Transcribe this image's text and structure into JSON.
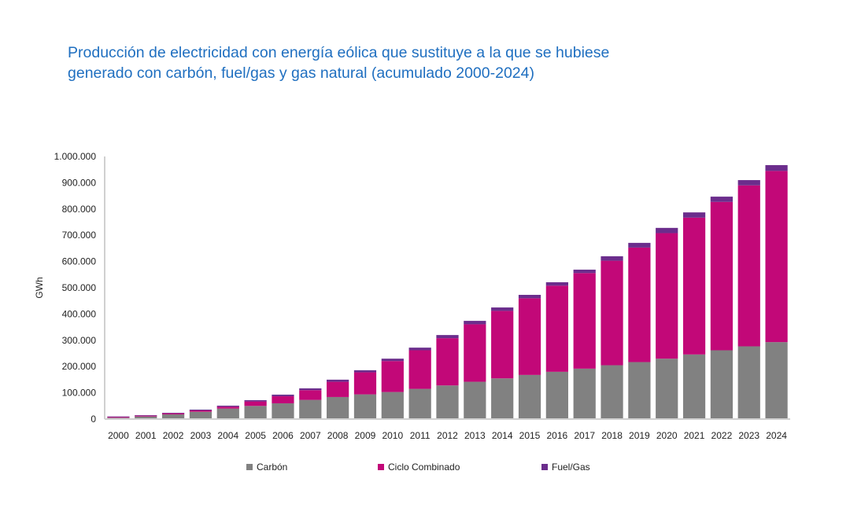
{
  "chart_data": {
    "type": "bar",
    "stacked": true,
    "title_lines": [
      "Producción de electricidad con energía eólica que sustituye a la que se hubiese",
      "generado con carbón, fuel/gas y gas natural (acumulado 2000-2024)"
    ],
    "xlabel": "",
    "ylabel": "GWh",
    "ylim": [
      0,
      1000000
    ],
    "yticks": [
      "0",
      "100.000",
      "200.000",
      "300.000",
      "400.000",
      "500.000",
      "600.000",
      "700.000",
      "800.000",
      "900.000",
      "1.000.000"
    ],
    "categories": [
      "2000",
      "2001",
      "2002",
      "2003",
      "2004",
      "2005",
      "2006",
      "2007",
      "2008",
      "2009",
      "2010",
      "2011",
      "2012",
      "2013",
      "2014",
      "2015",
      "2016",
      "2017",
      "2018",
      "2019",
      "2020",
      "2021",
      "2022",
      "2023",
      "2024"
    ],
    "series": [
      {
        "name": "Carbón",
        "color": "#818181",
        "values": [
          5000,
          10000,
          18000,
          28000,
          40000,
          50000,
          60000,
          73000,
          84000,
          94000,
          103000,
          115000,
          128000,
          142000,
          155000,
          168000,
          180000,
          192000,
          205000,
          217000,
          230000,
          246000,
          262000,
          277000,
          293000
        ]
      },
      {
        "name": "Ciclo Combinado",
        "color": "#c20878",
        "values": [
          3000,
          3000,
          4000,
          5000,
          7000,
          17000,
          27000,
          37000,
          58000,
          84000,
          118000,
          147000,
          180000,
          219000,
          257000,
          292000,
          328000,
          364000,
          398000,
          436000,
          478000,
          521000,
          565000,
          613000,
          652000
        ]
      },
      {
        "name": "Fuel/Gas",
        "color": "#6b2d8c",
        "values": [
          2000,
          2000,
          2000,
          3000,
          4000,
          5000,
          6000,
          7000,
          8000,
          8000,
          9000,
          10000,
          12000,
          13000,
          13000,
          13000,
          13000,
          13000,
          17000,
          18000,
          20000,
          20000,
          20000,
          20000,
          22000
        ]
      }
    ],
    "legend": "bottom",
    "grid": false
  }
}
